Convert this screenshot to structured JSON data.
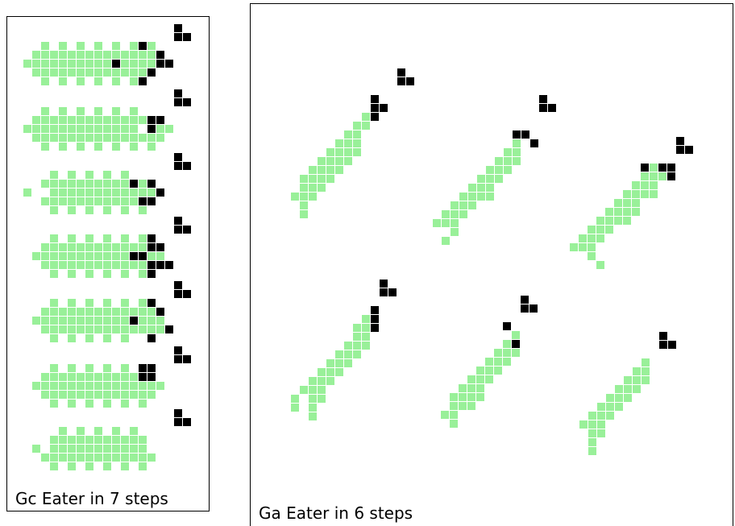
{
  "captions": {
    "gc": "Gc Eater in 7 steps",
    "ga": "Ga Eater in 6 steps"
  },
  "colors": {
    "live_cell": "#99f099",
    "eater_cell": "#000000",
    "border": "#000000"
  },
  "gc_steps": [
    {
      "green": [
        "2 1",
        "4 1",
        "6 1",
        "8 1",
        "10 1",
        "12 1",
        "14 1",
        "1 2",
        "2 2",
        "3 2",
        "4 2",
        "5 2",
        "6 2",
        "7 2",
        "8 2",
        "9 2",
        "10 2",
        "11 2",
        "12 2",
        "13 2",
        "14 2",
        "0 3",
        "1 3",
        "2 3",
        "3 3",
        "4 3",
        "5 3",
        "6 3",
        "7 3",
        "8 3",
        "9 3",
        "11 3",
        "12 3",
        "13 3",
        "14 3",
        "1 4",
        "2 4",
        "3 4",
        "4 4",
        "5 4",
        "6 4",
        "7 4",
        "8 4",
        "9 4",
        "10 4",
        "11 4",
        "12 4",
        "13 4",
        "2 5",
        "4 5",
        "6 5",
        "8 5",
        "10 5",
        "12 5"
      ],
      "black": [
        "13 1",
        "15 2",
        "10 3",
        "15 3",
        "16 3",
        "14 4",
        "13 5",
        "17 0",
        "17 -1",
        "18 0"
      ]
    },
    {
      "green": [
        "2 1",
        "4 1",
        "6 1",
        "8 1",
        "10 1",
        "12 1",
        "1 2",
        "2 2",
        "3 2",
        "4 2",
        "5 2",
        "6 2",
        "7 2",
        "8 2",
        "9 2",
        "10 2",
        "11 2",
        "12 2",
        "13 2",
        "0 3",
        "1 3",
        "2 3",
        "3 3",
        "4 3",
        "5 3",
        "6 3",
        "7 3",
        "8 3",
        "9 3",
        "10 3",
        "11 3",
        "12 3",
        "15 3",
        "16 3",
        "1 4",
        "2 4",
        "3 4",
        "4 4",
        "5 4",
        "6 4",
        "7 4",
        "8 4",
        "9 4",
        "10 4",
        "11 4",
        "12 4",
        "13 4",
        "14 4",
        "15 4",
        "2 5",
        "4 5",
        "6 5",
        "8 5",
        "10 5",
        "12 5",
        "14 5"
      ],
      "black": [
        "14 2",
        "15 2",
        "14 3",
        "17 0",
        "17 -1",
        "18 0"
      ]
    },
    {
      "green": [
        "3 1",
        "5 1",
        "7 1",
        "9 1",
        "11 1",
        "2 2",
        "3 2",
        "4 2",
        "5 2",
        "6 2",
        "7 2",
        "8 2",
        "9 2",
        "10 2",
        "11 2",
        "12 2",
        "13 2",
        "0 3",
        "3 3",
        "4 3",
        "5 3",
        "6 3",
        "7 3",
        "8 3",
        "9 3",
        "10 3",
        "11 3",
        "12 3",
        "13 3",
        "14 3",
        "15 3",
        "2 4",
        "3 4",
        "4 4",
        "5 4",
        "6 4",
        "7 4",
        "8 4",
        "9 4",
        "10 4",
        "11 4",
        "12 4",
        "13 4",
        "3 5",
        "5 5",
        "7 5",
        "9 5",
        "11 5",
        "13 5"
      ],
      "black": [
        "12 2",
        "14 2",
        "15 3",
        "13 4",
        "14 4",
        "17 0",
        "17 -1",
        "18 0"
      ]
    },
    {
      "green": [
        "3 1",
        "5 1",
        "7 1",
        "9 1",
        "11 1",
        "13 1",
        "2 2",
        "3 2",
        "4 2",
        "5 2",
        "6 2",
        "7 2",
        "8 2",
        "9 2",
        "10 2",
        "11 2",
        "12 2",
        "13 2",
        "1 3",
        "2 3",
        "3 3",
        "4 3",
        "5 3",
        "6 3",
        "7 3",
        "8 3",
        "9 3",
        "10 3",
        "11 3",
        "14 3",
        "15 3",
        "2 4",
        "3 4",
        "4 4",
        "5 4",
        "6 4",
        "7 4",
        "8 4",
        "9 4",
        "10 4",
        "11 4",
        "12 4",
        "13 4",
        "3 5",
        "5 5",
        "7 5",
        "9 5",
        "11 5",
        "13 5"
      ],
      "black": [
        "14 1",
        "14 2",
        "15 2",
        "12 3",
        "13 3",
        "14 4",
        "15 4",
        "16 4",
        "14 5",
        "17 0",
        "17 -1",
        "18 0"
      ]
    },
    {
      "green": [
        "3 1",
        "5 1",
        "7 1",
        "9 1",
        "11 1",
        "13 1",
        "2 2",
        "3 2",
        "4 2",
        "5 2",
        "6 2",
        "7 2",
        "8 2",
        "9 2",
        "10 2",
        "11 2",
        "12 2",
        "13 2",
        "14 2",
        "1 3",
        "2 3",
        "3 3",
        "4 3",
        "5 3",
        "6 3",
        "7 3",
        "8 3",
        "9 3",
        "10 3",
        "11 3",
        "13 3",
        "14 3",
        "15 3",
        "2 4",
        "3 4",
        "4 4",
        "5 4",
        "6 4",
        "7 4",
        "8 4",
        "9 4",
        "10 4",
        "11 4",
        "12 4",
        "13 4",
        "14 4",
        "15 4",
        "3 5",
        "5 5",
        "7 5",
        "9 5",
        "11 5"
      ],
      "black": [
        "14 1",
        "15 2",
        "12 3",
        "16 4",
        "14 5",
        "17 0",
        "17 -1",
        "18 0"
      ]
    },
    {
      "green": [
        "3 1",
        "5 1",
        "7 1",
        "9 1",
        "11 1",
        "13 1",
        "2 2",
        "3 2",
        "4 2",
        "5 2",
        "6 2",
        "7 2",
        "8 2",
        "9 2",
        "10 2",
        "11 2",
        "12 2",
        "13 2",
        "1 3",
        "2 3",
        "3 3",
        "4 3",
        "5 3",
        "6 3",
        "7 3",
        "8 3",
        "9 3",
        "10 3",
        "11 3",
        "12 3",
        "13 3",
        "14 3",
        "15 3",
        "2 4",
        "3 4",
        "4 4",
        "5 4",
        "6 4",
        "7 4",
        "8 4",
        "9 4",
        "10 4",
        "11 4",
        "12 4",
        "13 4",
        "14 4",
        "3 5",
        "5 5",
        "7 5",
        "9 5",
        "11 5",
        "13 5"
      ],
      "black": [
        "13 1",
        "14 1",
        "13 2",
        "14 2",
        "17 0",
        "17 -1",
        "18 0"
      ]
    },
    {
      "green": [
        "4 1",
        "6 1",
        "8 1",
        "10 1",
        "12 1",
        "3 2",
        "4 2",
        "5 2",
        "6 2",
        "7 2",
        "8 2",
        "9 2",
        "10 2",
        "11 2",
        "12 2",
        "13 2",
        "1 3",
        "3 3",
        "4 3",
        "5 3",
        "6 3",
        "7 3",
        "8 3",
        "9 3",
        "10 3",
        "11 3",
        "12 3",
        "13 3",
        "2 4",
        "3 4",
        "4 4",
        "5 4",
        "6 4",
        "7 4",
        "8 4",
        "9 4",
        "10 4",
        "11 4",
        "12 4",
        "13 4",
        "14 4",
        "3 5",
        "5 5",
        "7 5",
        "9 5",
        "11 5",
        "13 5"
      ],
      "black": [
        "17 0",
        "17 -1",
        "18 0"
      ]
    }
  ],
  "ga_steps": [
    {
      "green": [
        "8 0",
        "7 1",
        "8 1",
        "6 2",
        "7 2",
        "5 3",
        "6 3",
        "7 3",
        "4 4",
        "5 4",
        "6 4",
        "7 4",
        "3 5",
        "4 5",
        "5 5",
        "6 5",
        "2 6",
        "3 6",
        "4 6",
        "5 6",
        "1 7",
        "2 7",
        "3 7",
        "4 7",
        "1 8",
        "2 8",
        "3 8",
        "0 9",
        "1 9",
        "2 9",
        "1 10",
        "1 11"
      ],
      "black": [
        "9 -1",
        "9 -2",
        "10 -1",
        "12 -4",
        "12 -5",
        "13 -4",
        "9 0"
      ]
    },
    {
      "green": [
        "9 0",
        "8 1",
        "9 1",
        "7 2",
        "8 2",
        "9 2",
        "6 3",
        "7 3",
        "8 3",
        "5 4",
        "6 4",
        "7 4",
        "4 5",
        "5 5",
        "6 5",
        "3 6",
        "4 6",
        "5 6",
        "6 6",
        "2 7",
        "3 7",
        "4 7",
        "1 8",
        "2 8",
        "3 8",
        "0 9",
        "1 9",
        "2 9",
        "2 10",
        "1 11"
      ],
      "black": [
        "9 -1",
        "10 -1",
        "11 0",
        "12 -4",
        "12 -5",
        "13 -4"
      ]
    },
    {
      "green": [
        "9 0",
        "8 1",
        "9 1",
        "10 1",
        "7 2",
        "8 2",
        "9 2",
        "6 3",
        "7 3",
        "8 3",
        "9 3",
        "5 4",
        "6 4",
        "7 4",
        "4 5",
        "5 5",
        "6 5",
        "7 5",
        "3 6",
        "4 6",
        "5 6",
        "6 6",
        "2 7",
        "3 7",
        "4 7",
        "1 8",
        "2 8",
        "3 8",
        "0 9",
        "1 9",
        "2 9",
        "2 10",
        "3 11"
      ],
      "black": [
        "8 0",
        "10 0",
        "11 0",
        "11 1",
        "12 -2",
        "12 -3",
        "13 -2"
      ]
    },
    {
      "green": [
        "8 1",
        "7 2",
        "8 2",
        "7 3",
        "8 3",
        "6 4",
        "7 4",
        "8 4",
        "5 5",
        "6 5",
        "7 5",
        "4 6",
        "5 6",
        "6 6",
        "3 7",
        "4 7",
        "5 7",
        "2 8",
        "3 8",
        "4 8",
        "1 9",
        "2 9",
        "3 9",
        "0 10",
        "2 10",
        "3 10",
        "0 11",
        "2 11",
        "2 12"
      ],
      "black": [
        "9 0",
        "9 1",
        "9 2",
        "10 -2",
        "10 -3",
        "11 -2"
      ]
    },
    {
      "green": [
        "8 0",
        "7 1",
        "8 1",
        "6 2",
        "7 2",
        "8 2",
        "5 3",
        "6 3",
        "7 3",
        "4 4",
        "5 4",
        "6 4",
        "3 5",
        "4 5",
        "5 5",
        "2 6",
        "3 6",
        "4 6",
        "1 7",
        "2 7",
        "3 7",
        "4 7",
        "1 8",
        "2 8",
        "3 8",
        "0 9",
        "1 9",
        "1 10"
      ],
      "black": [
        "7 -1",
        "8 1",
        "9 -3",
        "9 -4",
        "10 -3"
      ]
    },
    {
      "green": [
        "7 0",
        "6 1",
        "7 1",
        "5 2",
        "6 2",
        "7 2",
        "4 3",
        "5 3",
        "6 3",
        "3 4",
        "4 4",
        "5 4",
        "2 5",
        "3 5",
        "4 5",
        "1 6",
        "2 6",
        "3 6",
        "0 7",
        "1 7",
        "2 7",
        "1 8",
        "2 8",
        "1 9",
        "1 10"
      ],
      "black": [
        "9 -2",
        "9 -3",
        "10 -2"
      ]
    }
  ]
}
